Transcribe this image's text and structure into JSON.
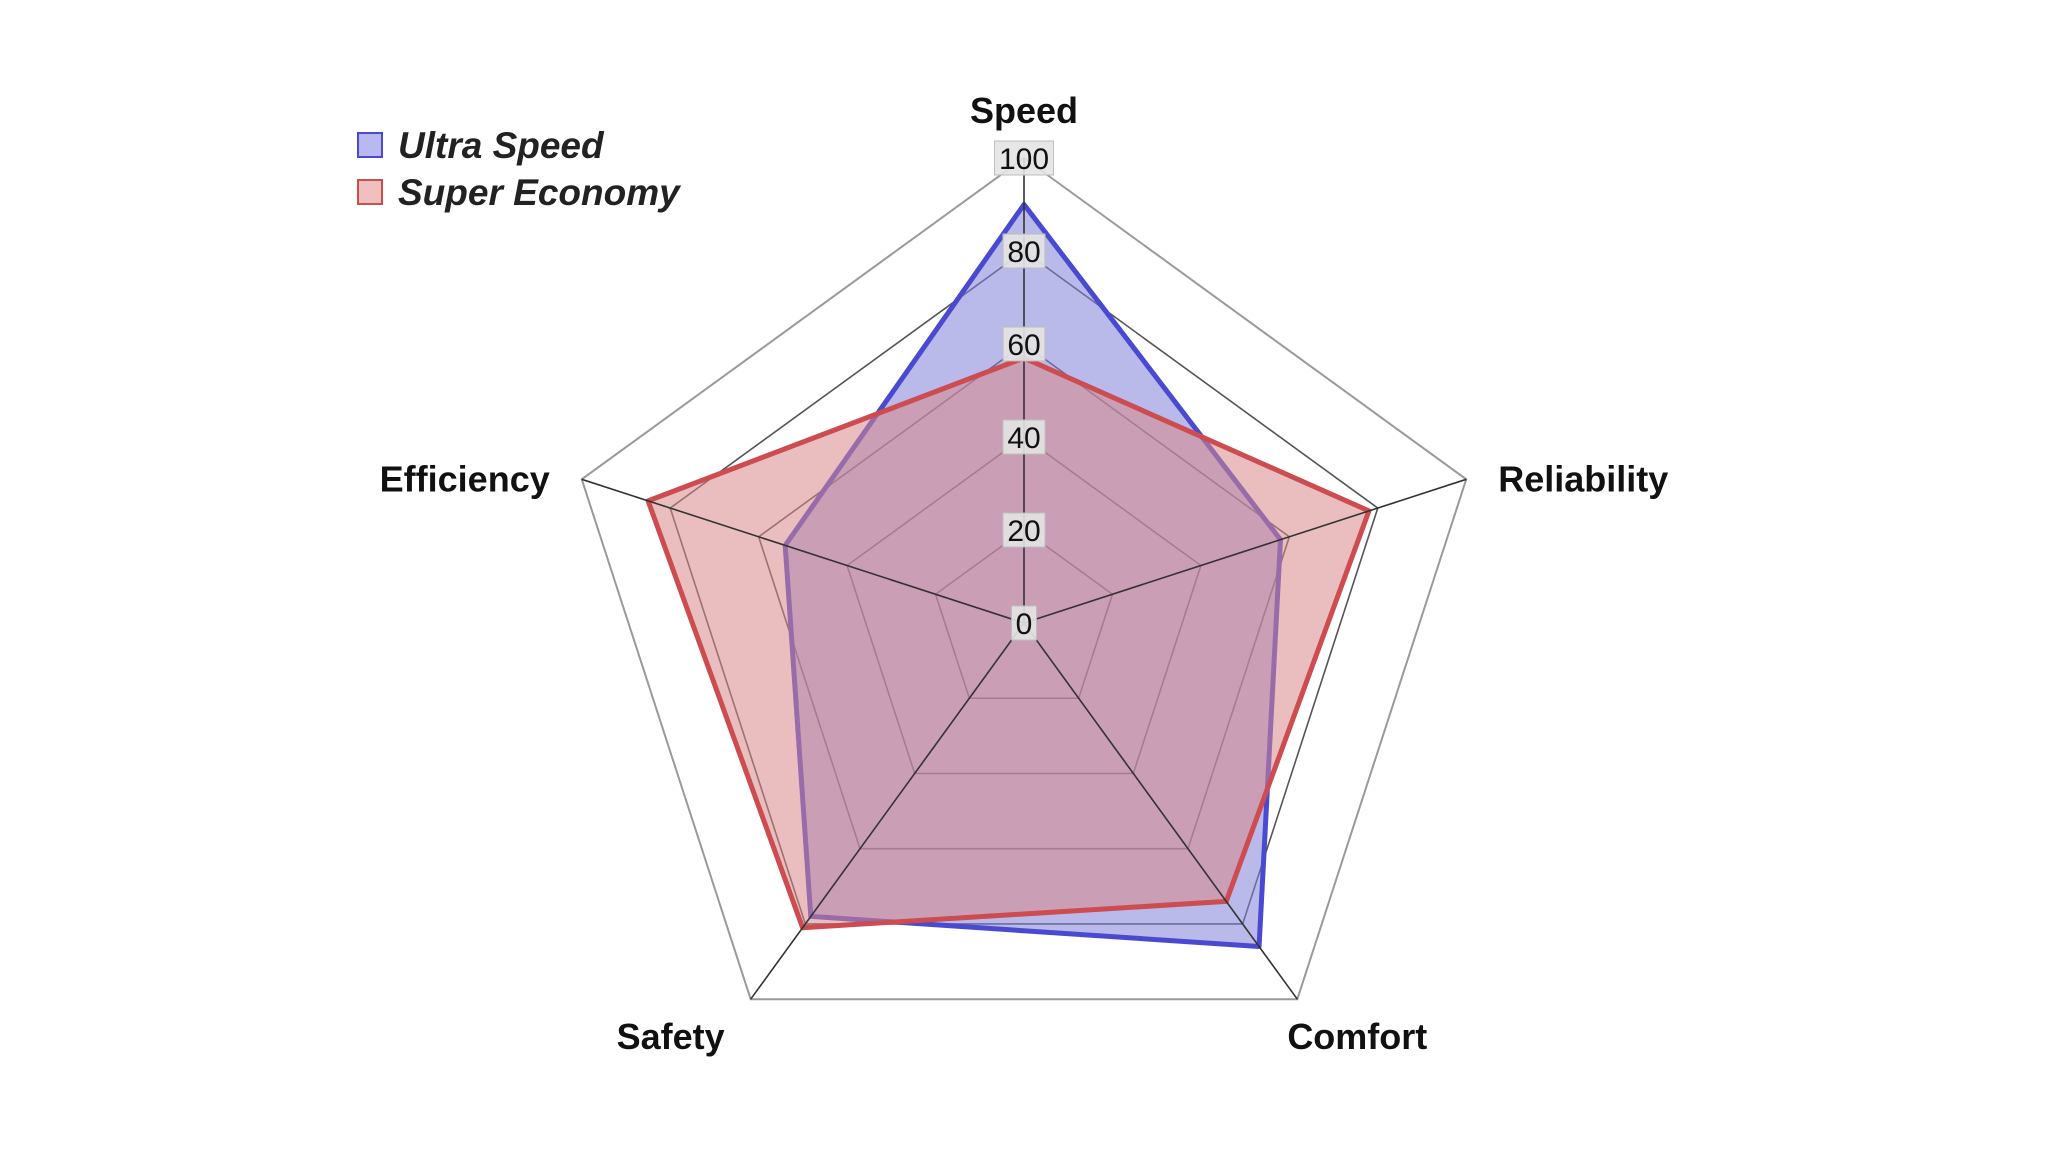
{
  "chart_data": {
    "type": "radar",
    "axes": [
      "Speed",
      "Reliability",
      "Comfort",
      "Safety",
      "Efficiency"
    ],
    "r_range": [
      0,
      100
    ],
    "r_ticks": [
      "0",
      "20",
      "40",
      "60",
      "80",
      "100"
    ],
    "grid": true,
    "legend_position": "top-left",
    "series": [
      {
        "name": "Ultra Speed",
        "values": [
          90,
          58,
          86,
          78,
          54
        ],
        "color": "#4a4ad0",
        "fill": "#7f7fd8"
      },
      {
        "name": "Super Economy",
        "values": [
          57,
          78,
          74,
          81,
          85
        ],
        "color": "#cc4c50",
        "fill": "#d98888"
      }
    ]
  },
  "legend": {
    "items": [
      {
        "label": "Ultra Speed",
        "swatch": "#b9b9f0",
        "border": "#4a4ad0"
      },
      {
        "label": "Super Economy",
        "swatch": "#f0c0c0",
        "border": "#cc4c50"
      }
    ]
  }
}
